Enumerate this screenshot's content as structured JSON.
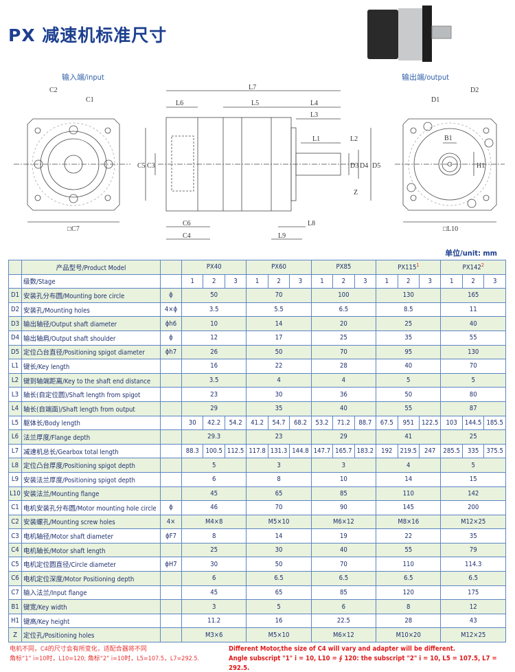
{
  "title": "PX 减速机标准尺寸",
  "views": {
    "input": "输入端/input",
    "output": "输出端/output"
  },
  "unit_label": "单位/unit: mm",
  "drawing_labels": {
    "C2": "C2",
    "C1": "C1",
    "C7": "□C7",
    "L7": "L7",
    "L6": "L6",
    "L5": "L5",
    "L4": "L4",
    "L3": "L3",
    "L1": "L1",
    "L2": "L2",
    "C5": "C5",
    "C3": "C3",
    "D3": "D3",
    "D4": "D4",
    "D5": "D5",
    "Z": "Z",
    "C6": "C6",
    "C4": "C4",
    "L9": "L9",
    "L8": "L8",
    "D2": "D2",
    "D1": "D1",
    "B1": "B1",
    "H1": "H1",
    "L10": "□L10"
  },
  "table": {
    "header_label": "产品型号/Product Model",
    "stage_label": "级数/Stage",
    "models": [
      {
        "name": "PX40",
        "sup": ""
      },
      {
        "name": "PX60",
        "sup": ""
      },
      {
        "name": "PX85",
        "sup": ""
      },
      {
        "name": "PX115",
        "sup": "1"
      },
      {
        "name": "PX142",
        "sup": "2"
      }
    ],
    "stages": [
      "1",
      "2",
      "3"
    ],
    "rows": [
      {
        "code": "D1",
        "name": "安装孔分布圆/Mounting bore circle",
        "unit": "ϕ",
        "values": [
          "50",
          "70",
          "100",
          "130",
          "165"
        ]
      },
      {
        "code": "D2",
        "name": "安装孔/Mounting holes",
        "unit": "4×ϕ",
        "values": [
          "3.5",
          "5.5",
          "6.5",
          "8.5",
          "11"
        ]
      },
      {
        "code": "D3",
        "name": "输出轴径/Output shaft diameter",
        "unit": "ϕh6",
        "values": [
          "10",
          "14",
          "20",
          "25",
          "40"
        ]
      },
      {
        "code": "D4",
        "name": "输出轴肩/Output shaft shoulder",
        "unit": "ϕ",
        "values": [
          "12",
          "17",
          "25",
          "35",
          "55"
        ]
      },
      {
        "code": "D5",
        "name": "定位凸台直径/Positioning spigot diameter",
        "unit": "ϕh7",
        "values": [
          "26",
          "50",
          "70",
          "95",
          "130"
        ]
      },
      {
        "code": "L1",
        "name": "键长/Key length",
        "unit": "",
        "values": [
          "16",
          "22",
          "28",
          "40",
          "70"
        ]
      },
      {
        "code": "L2",
        "name": "键到轴端距离/Key to the shaft end distance",
        "unit": "",
        "values": [
          "3.5",
          "4",
          "4",
          "5",
          "5"
        ]
      },
      {
        "code": "L3",
        "name": "轴长(自定位圆)/Shaft length from spigot",
        "unit": "",
        "values": [
          "23",
          "30",
          "36",
          "50",
          "80"
        ]
      },
      {
        "code": "L4",
        "name": "轴长(自端面)/Shaft length from output",
        "unit": "",
        "values": [
          "29",
          "35",
          "40",
          "55",
          "87"
        ]
      },
      {
        "code": "L5",
        "name": "躯体长/Body length",
        "unit": "",
        "values": [
          "30",
          "42.2",
          "54.2",
          "41.2",
          "54.7",
          "68.2",
          "53.2",
          "71.2",
          "88.7",
          "67.5",
          "951",
          "122.5",
          "103",
          "144.5",
          "185.5"
        ]
      },
      {
        "code": "L6",
        "name": "法兰厚度/Flange depth",
        "unit": "",
        "values": [
          "29.3",
          "23",
          "29",
          "41",
          "25"
        ]
      },
      {
        "code": "L7",
        "name": "减速机总长/Gearbox total length",
        "unit": "",
        "values": [
          "88.3",
          "100.5",
          "112.5",
          "117.8",
          "131.3",
          "144.8",
          "147.7",
          "165.7",
          "183.2",
          "192",
          "219.5",
          "247",
          "285.5",
          "335",
          "375.5"
        ]
      },
      {
        "code": "L8",
        "name": "定位凸台厚度/Positioning spigot depth",
        "unit": "",
        "values": [
          "5",
          "3",
          "3",
          "4",
          "5"
        ]
      },
      {
        "code": "L9",
        "name": "安装法兰厚度/Positioning spigot depth",
        "unit": "",
        "values": [
          "6",
          "8",
          "10",
          "14",
          "15"
        ]
      },
      {
        "code": "L10",
        "name": "安装法兰/Mounting flange",
        "unit": "",
        "values": [
          "45",
          "65",
          "85",
          "110",
          "142"
        ]
      },
      {
        "code": "C1",
        "name": "电机安装孔分布圆/Motor mounting hole circle",
        "unit": "ϕ",
        "values": [
          "46",
          "70",
          "90",
          "145",
          "200"
        ]
      },
      {
        "code": "C2",
        "name": "安装螺孔/Mounting screw holes",
        "unit": "4×",
        "values": [
          "M4×8",
          "M5×10",
          "M6×12",
          "M8×16",
          "M12×25"
        ]
      },
      {
        "code": "C3",
        "name": "电机轴径/Motor shaft diameter",
        "unit": "ϕF7",
        "values": [
          "8",
          "14",
          "19",
          "22",
          "35"
        ]
      },
      {
        "code": "C4",
        "name": "电机轴长/Motor shaft length",
        "unit": "",
        "values": [
          "25",
          "30",
          "40",
          "55",
          "79"
        ]
      },
      {
        "code": "C5",
        "name": "电机定位圆直径/Circle diameter",
        "unit": "ϕH7",
        "values": [
          "30",
          "50",
          "70",
          "110",
          "114.3"
        ]
      },
      {
        "code": "C6",
        "name": "电机定位深度/Motor Positioning depth",
        "unit": "",
        "values": [
          "6",
          "6.5",
          "6.5",
          "6.5",
          "6.5"
        ]
      },
      {
        "code": "C7",
        "name": "输入法兰/Input flange",
        "unit": "",
        "values": [
          "45",
          "65",
          "85",
          "120",
          "175"
        ]
      },
      {
        "code": "B1",
        "name": "键宽/Key width",
        "unit": "",
        "values": [
          "3",
          "5",
          "6",
          "8",
          "12"
        ]
      },
      {
        "code": "H1",
        "name": "键高/Key height",
        "unit": "",
        "values": [
          "11.2",
          "16",
          "22.5",
          "28",
          "43"
        ]
      },
      {
        "code": "Z",
        "name": "定位孔/Positioning holes",
        "unit": "",
        "values": [
          "M3×6",
          "M5×10",
          "M6×12",
          "M10×20",
          "M12×25"
        ]
      }
    ]
  },
  "footnotes": {
    "cn_1": "电机不同，C4的尺寸会有所变化，适配合器将不同",
    "cn_2": "角标“1” i=10时，L10=120;  角标“2” i=10时，L5=107.5，L7=292.5.",
    "en_1": "Different Motor,the size of C4 will vary and adapter will be different.",
    "en_2": "Angle subscript \"1\" i = 10, L10 = ∮ 120: the subscript \"2\" i = 10, L5 = 107.5, L7 = 292.5."
  }
}
